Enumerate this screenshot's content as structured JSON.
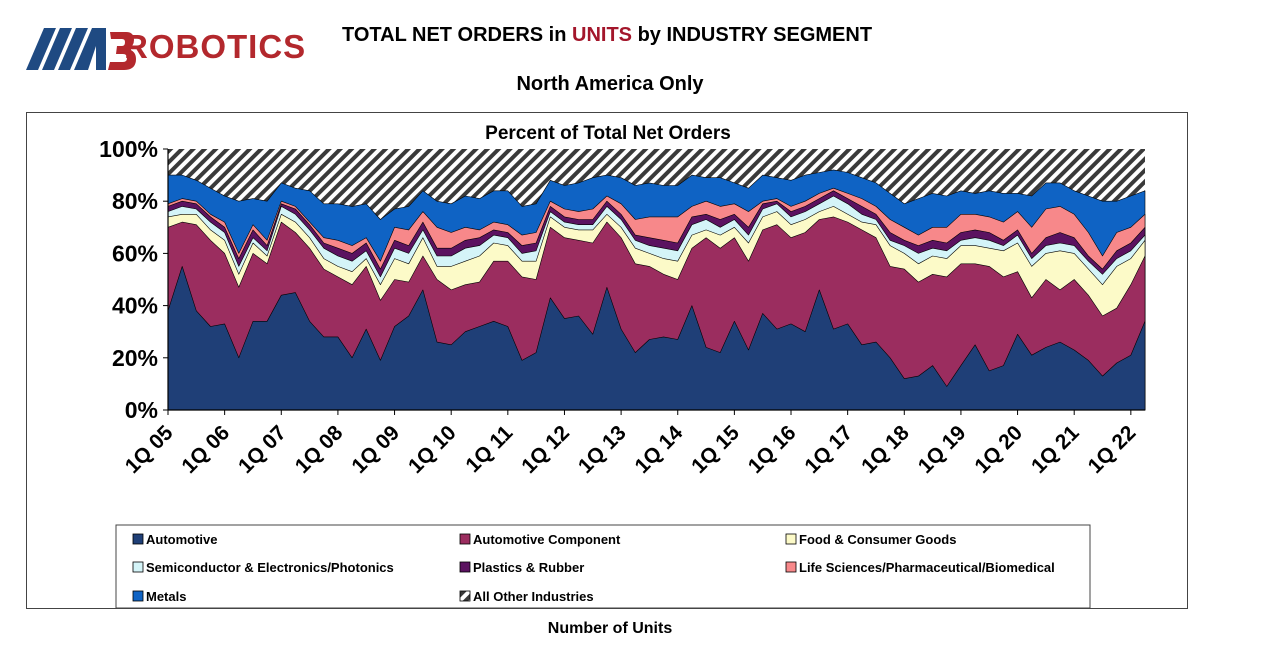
{
  "header": {
    "logo_text": "ROBOTICS",
    "title_pre": "TOTAL NET ORDERS in ",
    "title_highlight": "UNITS",
    "title_post": " by INDUSTRY SEGMENT",
    "subtitle": "North America Only"
  },
  "footer": {
    "label": "Number of Units"
  },
  "colors": {
    "Automotive": "#1f3f77",
    "Automotive Component": "#9b2d5f",
    "Food & Consumer Goods": "#fcfac8",
    "Semiconductor & Electronics/Photonics": "#d4f4f8",
    "Plastics & Rubber": "#5b1260",
    "Life Sciences/Pharmaceutical/Biomedical": "#f7888a",
    "Metals": "#0f63c4",
    "All Other Industries": "#bdbdbd"
  },
  "chart_data": {
    "type": "area",
    "stacked": true,
    "title": "Percent of Total Net Orders",
    "xlabel": "Number of Units",
    "ylim": [
      0,
      100
    ],
    "yticks": [
      "0%",
      "20%",
      "40%",
      "60%",
      "80%",
      "100%"
    ],
    "xtick_labels": [
      "1Q 05",
      "1Q 06",
      "1Q 07",
      "1Q 08",
      "1Q 09",
      "1Q 10",
      "1Q 11",
      "1Q 12",
      "1Q 13",
      "1Q 14",
      "1Q 15",
      "1Q 16",
      "1Q 17",
      "1Q 18",
      "1Q 19",
      "1Q 20",
      "1Q 21",
      "1Q 22"
    ],
    "legend_placement": "bottom",
    "legend": [
      "Automotive",
      "Automotive Component",
      "Food & Consumer Goods",
      "Semiconductor & Electronics/Photonics",
      "Plastics & Rubber",
      "Life Sciences/Pharmaceutical/Biomedical",
      "Metals",
      "All Other Industries"
    ],
    "series_cumulative": [
      {
        "name": "Automotive",
        "values": [
          38,
          55,
          38,
          32,
          33,
          20,
          34,
          34,
          44,
          45,
          34,
          28,
          28,
          20,
          31,
          19,
          32,
          36,
          46,
          26,
          25,
          30,
          32,
          34,
          32,
          19,
          22,
          43,
          35,
          36,
          29,
          47,
          31,
          22,
          27,
          28,
          27,
          40,
          24,
          22,
          34,
          23,
          37,
          31,
          33,
          30,
          46,
          31,
          33,
          25,
          26,
          20,
          12,
          13,
          17,
          9,
          17,
          25,
          15,
          17,
          29,
          21,
          24,
          26,
          23,
          19,
          13,
          18,
          21,
          34
        ]
      },
      {
        "name": "Automotive Component",
        "values": [
          70,
          72,
          71,
          65,
          60,
          47,
          60,
          56,
          72,
          68,
          62,
          54,
          51,
          48,
          55,
          42,
          50,
          49,
          59,
          50,
          46,
          48,
          49,
          57,
          57,
          51,
          50,
          70,
          66,
          65,
          64,
          72,
          66,
          56,
          55,
          52,
          50,
          62,
          66,
          62,
          66,
          57,
          69,
          71,
          66,
          68,
          73,
          74,
          72,
          69,
          66,
          55,
          54,
          49,
          52,
          51,
          56,
          56,
          55,
          51,
          53,
          43,
          50,
          46,
          50,
          44,
          36,
          39,
          48,
          59
        ]
      },
      {
        "name": "Food & Consumer Goods",
        "values": [
          74,
          75,
          75,
          69,
          65,
          52,
          64,
          59,
          75,
          72,
          66,
          58,
          55,
          53,
          58,
          48,
          58,
          56,
          66,
          55,
          55,
          57,
          59,
          64,
          63,
          57,
          57,
          74,
          70,
          69,
          69,
          75,
          70,
          62,
          60,
          58,
          57,
          67,
          69,
          67,
          70,
          64,
          74,
          76,
          71,
          73,
          76,
          78,
          75,
          72,
          71,
          63,
          60,
          56,
          59,
          58,
          63,
          63,
          62,
          61,
          64,
          55,
          60,
          61,
          60,
          54,
          48,
          55,
          58,
          65
        ]
      },
      {
        "name": "Semiconductor & Electronics/Photonics",
        "values": [
          76,
          78,
          77,
          72,
          68,
          55,
          66,
          61,
          78,
          75,
          69,
          62,
          59,
          57,
          61,
          51,
          62,
          60,
          69,
          59,
          59,
          62,
          63,
          67,
          66,
          60,
          61,
          76,
          72,
          71,
          71,
          78,
          73,
          65,
          63,
          62,
          61,
          71,
          73,
          70,
          73,
          67,
          77,
          79,
          74,
          76,
          79,
          82,
          79,
          75,
          73,
          65,
          63,
          60,
          62,
          61,
          65,
          66,
          65,
          63,
          67,
          58,
          63,
          64,
          63,
          57,
          52,
          58,
          61,
          67
        ]
      },
      {
        "name": "Plastics & Rubber",
        "values": [
          78,
          80,
          79,
          74,
          70,
          58,
          69,
          63,
          79,
          77,
          71,
          64,
          62,
          60,
          64,
          54,
          65,
          63,
          72,
          62,
          62,
          65,
          66,
          69,
          68,
          63,
          64,
          78,
          74,
          73,
          73,
          80,
          75,
          67,
          66,
          65,
          64,
          74,
          75,
          73,
          75,
          70,
          79,
          80,
          76,
          78,
          81,
          84,
          81,
          78,
          75,
          68,
          65,
          63,
          65,
          64,
          68,
          69,
          68,
          65,
          69,
          60,
          66,
          68,
          66,
          59,
          54,
          61,
          64,
          70
        ]
      },
      {
        "name": "Life Sciences/Pharmaceutical/Biomedical",
        "values": [
          79,
          81,
          80,
          75,
          72,
          60,
          71,
          65,
          80,
          78,
          72,
          66,
          65,
          63,
          66,
          57,
          70,
          69,
          76,
          70,
          68,
          70,
          69,
          72,
          71,
          67,
          68,
          80,
          77,
          76,
          77,
          82,
          79,
          73,
          74,
          74,
          74,
          78,
          80,
          78,
          79,
          76,
          80,
          81,
          78,
          80,
          83,
          85,
          83,
          81,
          78,
          73,
          70,
          67,
          70,
          70,
          75,
          75,
          74,
          72,
          76,
          70,
          77,
          78,
          75,
          68,
          59,
          68,
          70,
          75
        ]
      },
      {
        "name": "Metals",
        "values": [
          90,
          90,
          88,
          85,
          82,
          80,
          81,
          80,
          87,
          85,
          84,
          79,
          79,
          78,
          79,
          73,
          77,
          78,
          84,
          80,
          79,
          82,
          81,
          84,
          84,
          78,
          79,
          88,
          86,
          87,
          89,
          90,
          89,
          86,
          87,
          86,
          86,
          90,
          89,
          89,
          87,
          85,
          90,
          89,
          88,
          90,
          91,
          92,
          91,
          89,
          87,
          83,
          79,
          81,
          83,
          82,
          84,
          83,
          84,
          83,
          83,
          82,
          87,
          87,
          84,
          82,
          80,
          80,
          82,
          84
        ]
      }
    ]
  }
}
